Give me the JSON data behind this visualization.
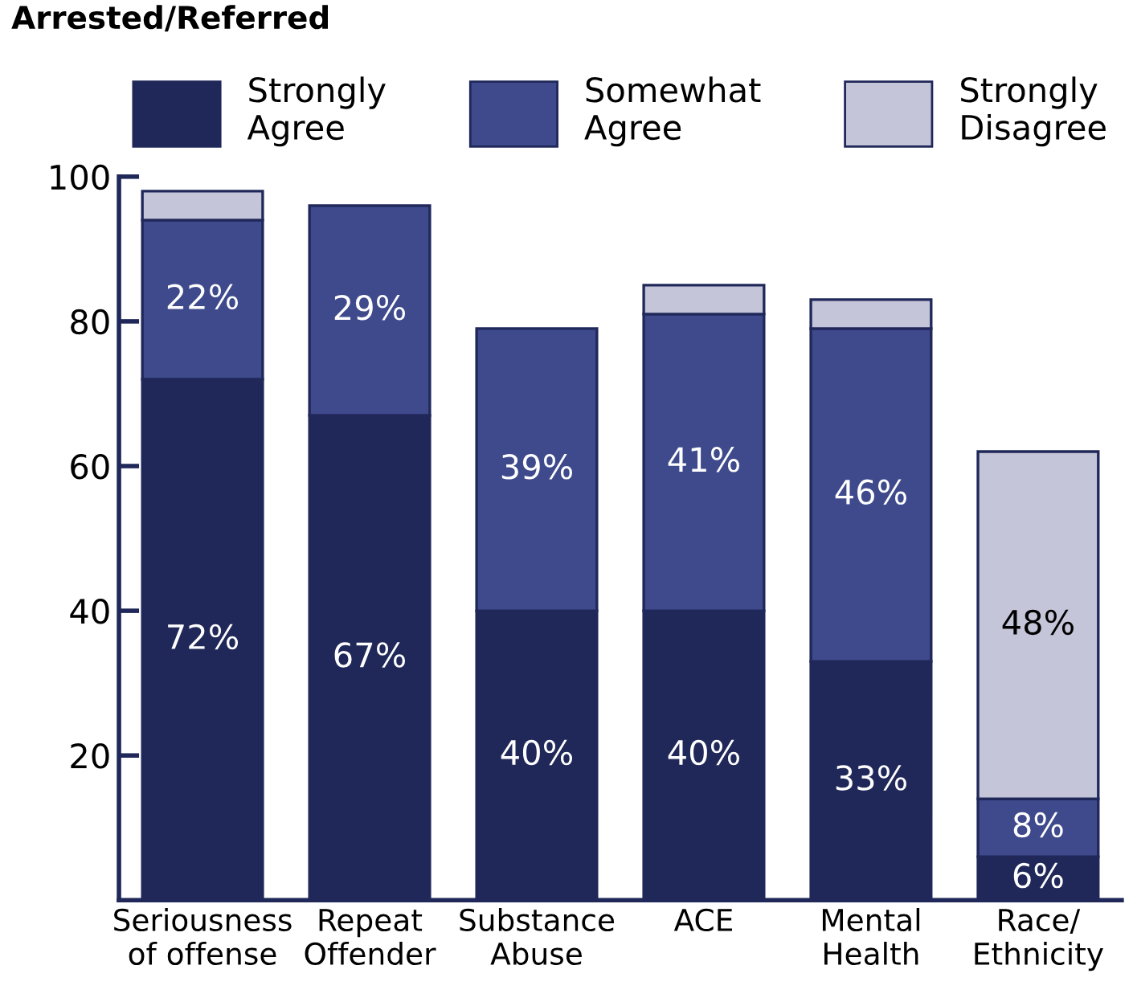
{
  "chart_data": {
    "type": "bar",
    "title": "Arrested/Referred",
    "stacked": true,
    "categories": [
      "Seriousness\nof offense",
      "Repeat\nOffender",
      "Substance\nAbuse",
      "ACE",
      "Mental\nHealth",
      "Race/\nEthnicity"
    ],
    "series": [
      {
        "name": "Strongly\nAgree",
        "color": "#20285a",
        "values": [
          72,
          67,
          40,
          40,
          33,
          6
        ],
        "value_labels": [
          "72%",
          "67%",
          "40%",
          "40%",
          "33%",
          "6%"
        ]
      },
      {
        "name": "Somewhat\nAgree",
        "color": "#3e4a8c",
        "values": [
          22,
          29,
          39,
          41,
          46,
          8
        ],
        "value_labels": [
          "22%",
          "29%",
          "39%",
          "41%",
          "46%",
          "8%"
        ]
      },
      {
        "name": "Strongly\nDisagree",
        "color": "#c4c5d8",
        "values": [
          4,
          null,
          null,
          4,
          4,
          48
        ],
        "value_labels": [
          null,
          null,
          null,
          null,
          null,
          "48%"
        ]
      }
    ],
    "ylim": [
      0,
      100
    ],
    "yticks": [
      20,
      40,
      60,
      80,
      100
    ],
    "grid": false,
    "legend": "top"
  }
}
